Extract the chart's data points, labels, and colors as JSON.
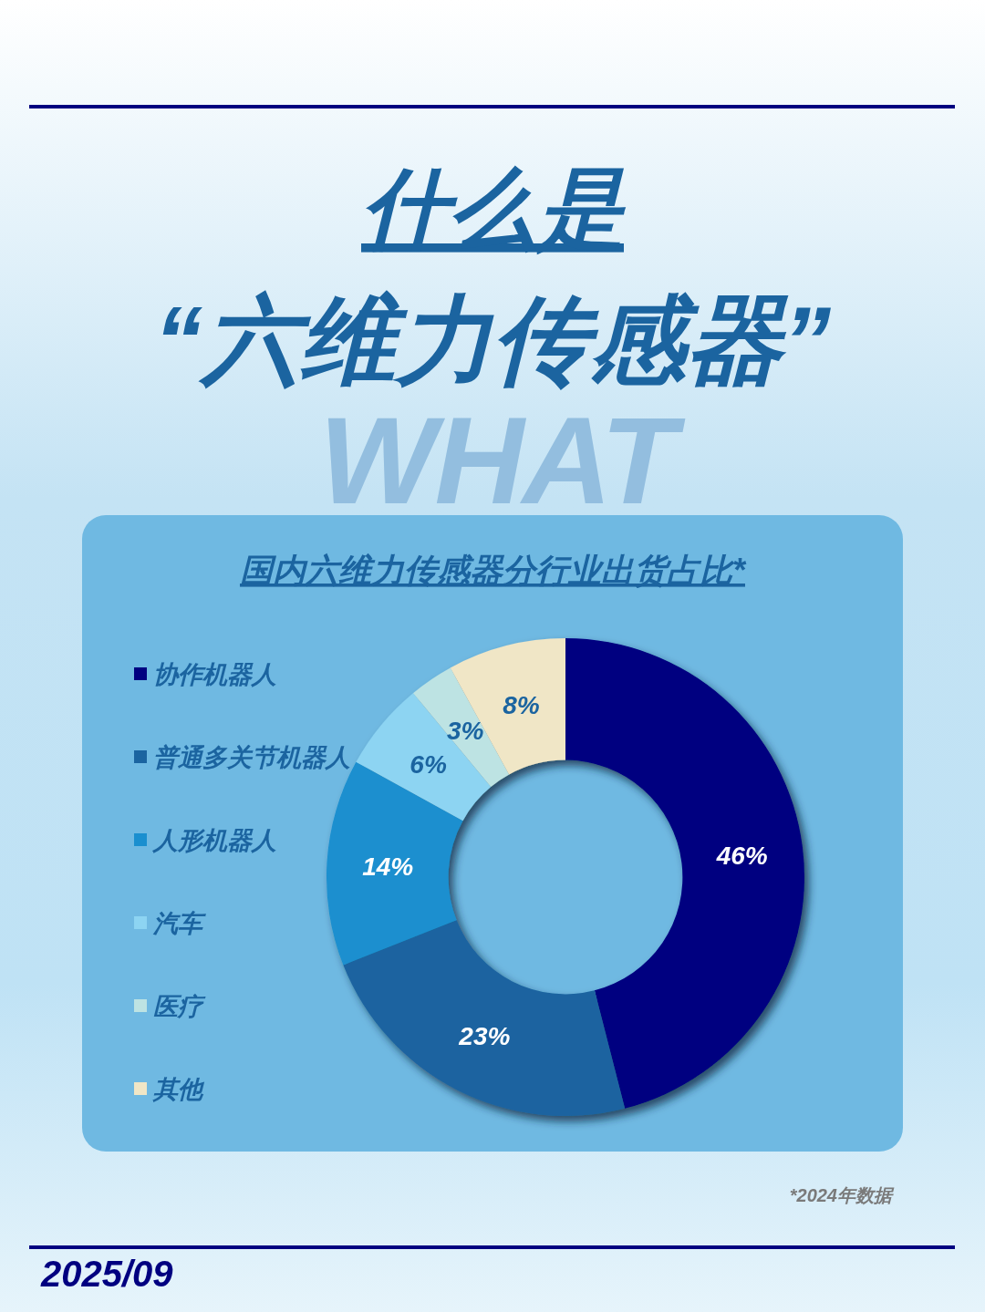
{
  "chart_data": {
    "type": "donut",
    "title": "什么是\n“六维力传感器”",
    "subtitle": "国内六维力传感器分行业出货占比*",
    "categories": [
      "协作机器人",
      "普通多关节机器人",
      "人形机器人",
      "汽车",
      "医疗",
      "其他"
    ],
    "values": [
      46,
      23,
      14,
      6,
      3,
      8
    ],
    "colors": [
      "#000080",
      "#1b64a0",
      "#1a8fcf",
      "#8dd4f2",
      "#bde3e3",
      "#f0e6c6"
    ],
    "value_labels": [
      "46%",
      "23%",
      "14%",
      "6%",
      "3%",
      "8%"
    ],
    "legend": "left",
    "annotations": [
      "WHAT",
      "*2024年数据",
      "2025/09"
    ]
  }
}
